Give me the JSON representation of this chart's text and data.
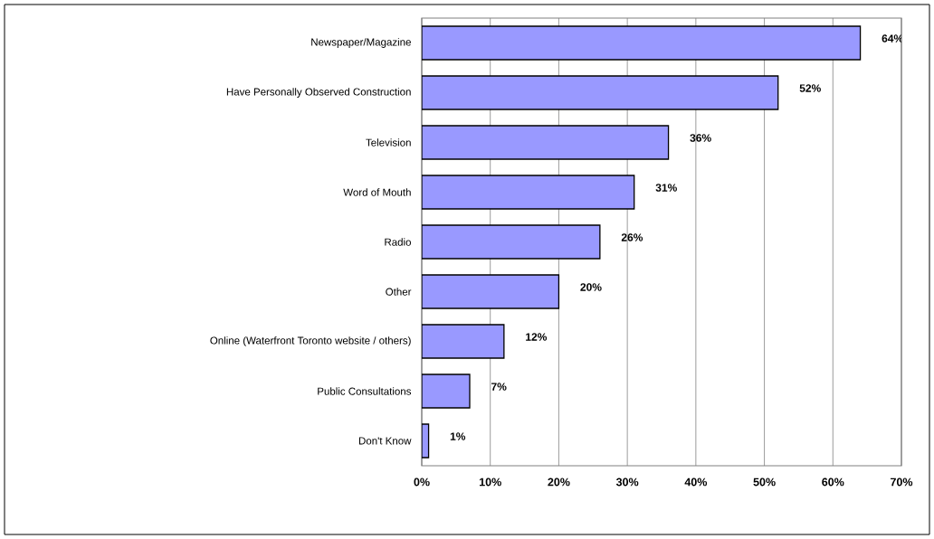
{
  "chart_data": {
    "type": "bar",
    "orientation": "horizontal",
    "categories": [
      "Newspaper/Magazine",
      "Have Personally Observed Construction",
      "Television",
      "Word of Mouth",
      "Radio",
      "Other",
      "Online (Waterfront Toronto website / others)",
      "Public Consultations",
      "Don't Know"
    ],
    "values": [
      64,
      52,
      36,
      31,
      26,
      20,
      12,
      7,
      1
    ],
    "value_labels": [
      "64%",
      "52%",
      "36%",
      "31%",
      "26%",
      "20%",
      "12%",
      "7%",
      "1%"
    ],
    "color": "#9999ff",
    "xlim": [
      0,
      70
    ],
    "xticks": [
      {
        "value": 0,
        "label": "0%"
      },
      {
        "value": 10,
        "label": "10%"
      },
      {
        "value": 20,
        "label": "20%"
      },
      {
        "value": 30,
        "label": "30%"
      },
      {
        "value": 40,
        "label": "40%"
      },
      {
        "value": 50,
        "label": "50%"
      },
      {
        "value": 60,
        "label": "60%"
      },
      {
        "value": 70,
        "label": "70%"
      }
    ],
    "grid": "x"
  }
}
